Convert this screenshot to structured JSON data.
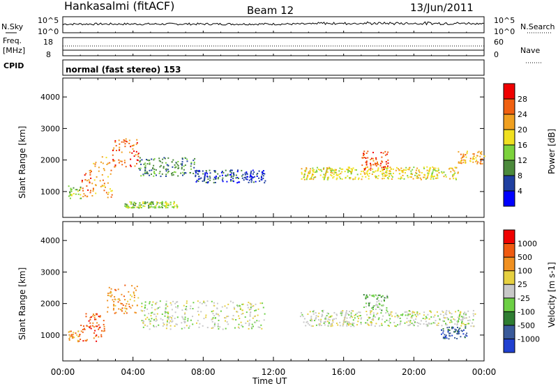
{
  "header": {
    "station": "Hankasalmi (fitACF)",
    "beam": "Beam 12",
    "date": "13/Jun/2011"
  },
  "strip1": {
    "left_label": "N.Sky",
    "right_label": "N.Search",
    "left_ticks": [
      "10^5",
      "10^0"
    ],
    "right_ticks": [
      "10^5",
      "10^0"
    ]
  },
  "strip2": {
    "left_label_1": "Freq.",
    "left_label_2": "[MHz]",
    "right_label": "Nave",
    "left_ticks": [
      "18",
      "8"
    ],
    "right_ticks": [
      "60",
      "0"
    ]
  },
  "cpid": {
    "label": "CPID",
    "mode": "normal (fast stereo) 153"
  },
  "colors": {
    "power": [
      "#0000ff",
      "#1f3fa0",
      "#4c8a3c",
      "#7cd23c",
      "#f0e020",
      "#f0a020",
      "#f06010",
      "#f00000"
    ],
    "velocity": [
      "#2040d0",
      "#3a5a9a",
      "#2f7d32",
      "#6ccf44",
      "#c8c8c8",
      "#e6d040",
      "#f09020",
      "#f05a10",
      "#f00000"
    ]
  },
  "chart_data": [
    {
      "type": "heatmap",
      "name": "power",
      "ylabel": "Slant Range [km]",
      "ylim": [
        180,
        4600
      ],
      "yticks": [
        1000,
        2000,
        3000,
        4000
      ],
      "xlim": [
        0,
        24
      ],
      "colorbar_label": "Power [dB]",
      "colorbar_ticks": [
        "4",
        "8",
        "12",
        "16",
        "20",
        "24",
        "28"
      ],
      "bands": [
        {
          "t0": 0.3,
          "t1": 1.0,
          "r0": 800,
          "r1": 1200,
          "level": 3
        },
        {
          "t0": 1.0,
          "t1": 1.7,
          "r0": 800,
          "r1": 1700,
          "level": 6
        },
        {
          "t0": 1.7,
          "t1": 2.8,
          "r0": 800,
          "r1": 2200,
          "level": 5
        },
        {
          "t0": 2.8,
          "t1": 4.3,
          "r0": 1800,
          "r1": 2700,
          "level": 6
        },
        {
          "t0": 4.3,
          "t1": 7.5,
          "r0": 1500,
          "r1": 2100,
          "level": 2
        },
        {
          "t0": 3.5,
          "t1": 6.5,
          "r0": 500,
          "r1": 700,
          "level": 3
        },
        {
          "t0": 7.5,
          "t1": 11.5,
          "r0": 1300,
          "r1": 1700,
          "level": 1
        },
        {
          "t0": 13.5,
          "t1": 22.5,
          "r0": 1400,
          "r1": 1800,
          "level": 4
        },
        {
          "t0": 17.0,
          "t1": 18.5,
          "r0": 1700,
          "r1": 2300,
          "level": 6
        },
        {
          "t0": 22.5,
          "t1": 24.0,
          "r0": 1900,
          "r1": 2300,
          "level": 5
        }
      ]
    },
    {
      "type": "heatmap",
      "name": "velocity",
      "ylabel": "Slant Range [km]",
      "ylim": [
        180,
        4600
      ],
      "yticks": [
        1000,
        2000,
        3000,
        4000
      ],
      "xlabel": "Time UT",
      "xticks": [
        "00:00",
        "04:00",
        "08:00",
        "12:00",
        "16:00",
        "20:00",
        "00:00"
      ],
      "xlim": [
        0,
        24
      ],
      "colorbar_label": "Velocity [m s-1]",
      "colorbar_ticks": [
        "1000",
        "500",
        "100",
        "25",
        "-25",
        "-100",
        "-500",
        "-1000"
      ],
      "bands": [
        {
          "t0": 0.3,
          "t1": 1.0,
          "r0": 800,
          "r1": 1200,
          "level": 6
        },
        {
          "t0": 1.0,
          "t1": 2.5,
          "r0": 800,
          "r1": 1700,
          "level": 7
        },
        {
          "t0": 2.5,
          "t1": 4.3,
          "r0": 1700,
          "r1": 2600,
          "level": 6
        },
        {
          "t0": 4.3,
          "t1": 11.5,
          "r0": 1200,
          "r1": 2100,
          "level": 4
        },
        {
          "t0": 13.5,
          "t1": 23.5,
          "r0": 1300,
          "r1": 1800,
          "level": 4
        },
        {
          "t0": 17.0,
          "t1": 18.5,
          "r0": 1800,
          "r1": 2300,
          "level": 3
        },
        {
          "t0": 21.5,
          "t1": 23.0,
          "r0": 900,
          "r1": 1300,
          "level": 1
        }
      ]
    }
  ]
}
